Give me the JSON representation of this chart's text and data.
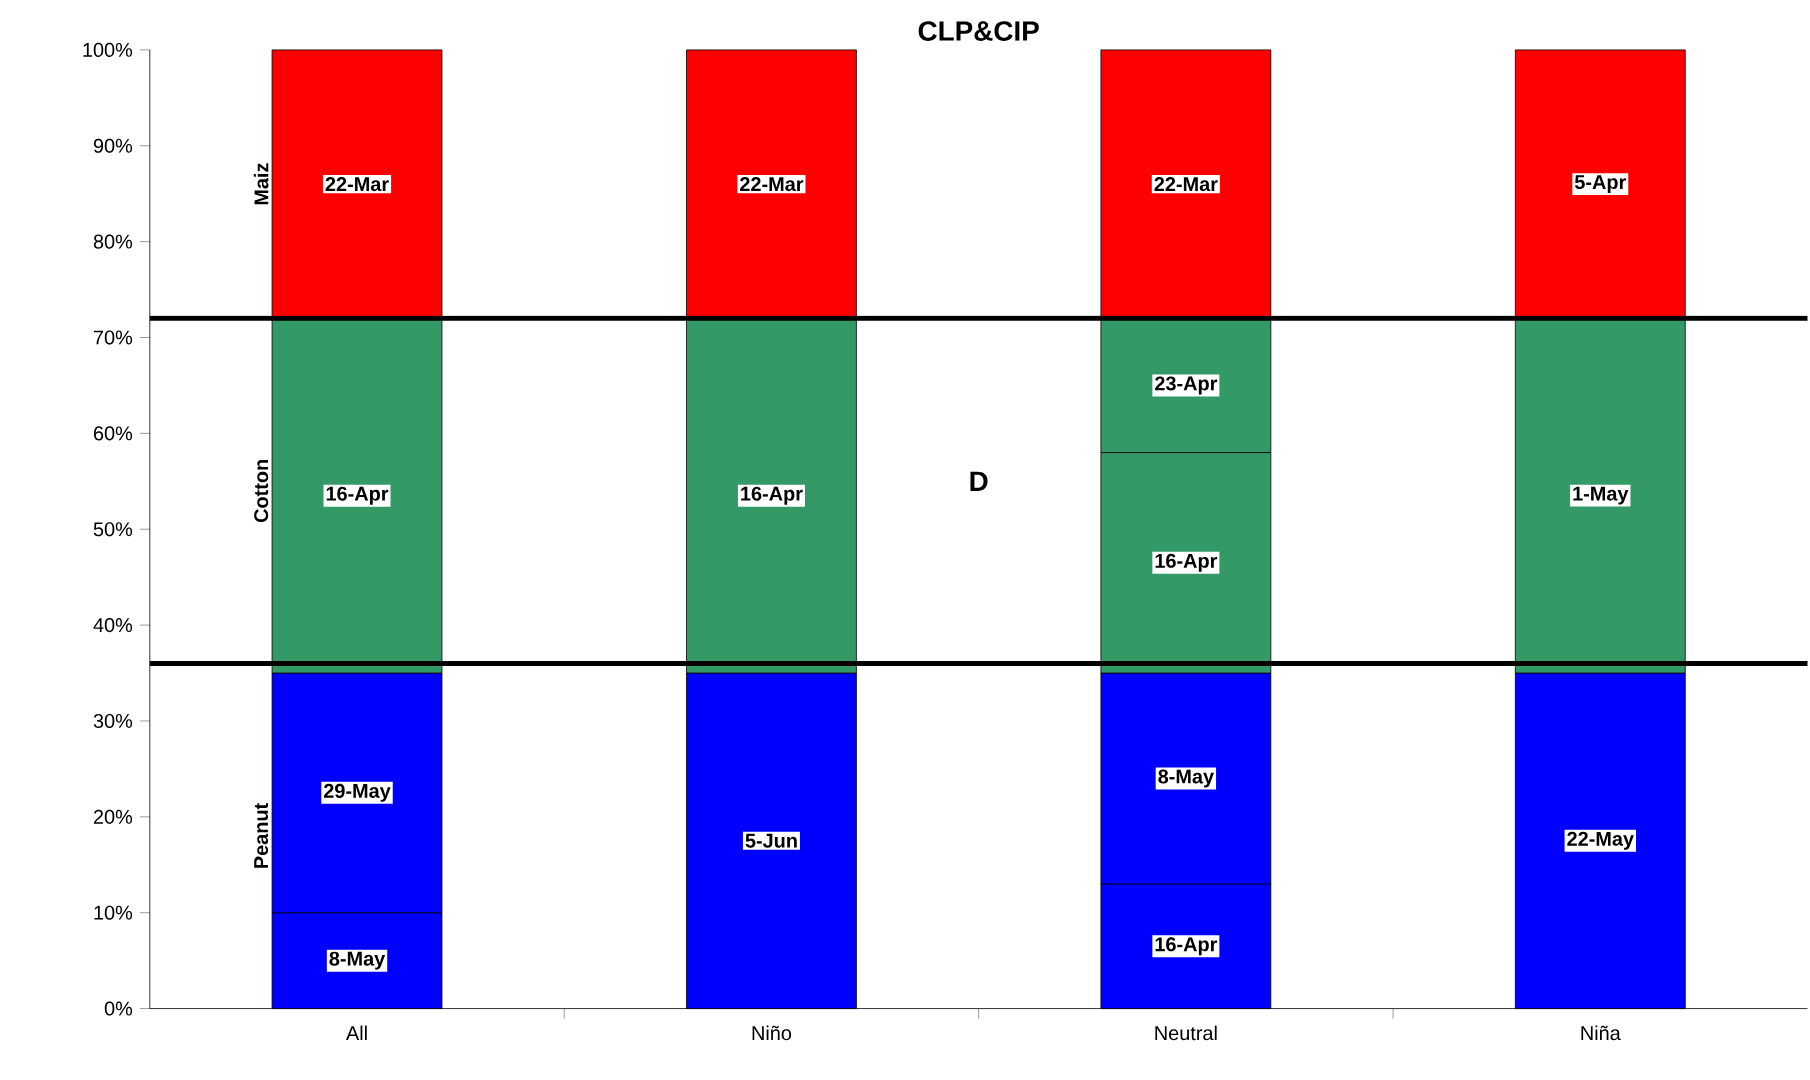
{
  "chart_data": {
    "type": "bar",
    "stacked": true,
    "title": "CLP&CIP",
    "categories": [
      "All",
      "Niño",
      "Neutral",
      "Niña"
    ],
    "series": [
      {
        "color": "#0000ff",
        "values": [
          10,
          35,
          13,
          35
        ],
        "value_labels": [
          "8-May",
          "5-Jun",
          "16-Apr",
          "22-May"
        ]
      },
      {
        "color": "#0000ff",
        "values": [
          25,
          null,
          22,
          null
        ],
        "value_labels": [
          "29-May",
          null,
          "8-May",
          null
        ]
      },
      {
        "color": "#339966",
        "values": [
          37,
          37,
          23,
          37
        ],
        "value_labels": [
          "16-Apr",
          "16-Apr",
          "16-Apr",
          "1-May"
        ]
      },
      {
        "color": "#339966",
        "values": [
          null,
          null,
          14,
          null
        ],
        "value_labels": [
          null,
          null,
          "23-Apr",
          null
        ]
      },
      {
        "color": "#ff0000",
        "values": [
          28,
          28,
          28,
          28
        ],
        "value_labels": [
          "22-Mar",
          "22-Mar",
          "22-Mar",
          "5-Apr"
        ]
      }
    ],
    "ylim": [
      0,
      100
    ],
    "yticks": [
      {
        "value": 0,
        "label": "0%"
      },
      {
        "value": 10,
        "label": "10%"
      },
      {
        "value": 20,
        "label": "20%"
      },
      {
        "value": 30,
        "label": "30%"
      },
      {
        "value": 40,
        "label": "40%"
      },
      {
        "value": 50,
        "label": "50%"
      },
      {
        "value": 60,
        "label": "60%"
      },
      {
        "value": 70,
        "label": "70%"
      },
      {
        "value": 80,
        "label": "80%"
      },
      {
        "value": 90,
        "label": "90%"
      },
      {
        "value": 100,
        "label": "100%"
      }
    ],
    "ref_lines": [
      {
        "axis": "y",
        "value": 36,
        "color": "#000000"
      },
      {
        "axis": "y",
        "value": 72,
        "color": "#000000"
      }
    ],
    "annotations": [
      "Maiz",
      "Cotton",
      "Peanut",
      "D"
    ],
    "grid": false
  }
}
